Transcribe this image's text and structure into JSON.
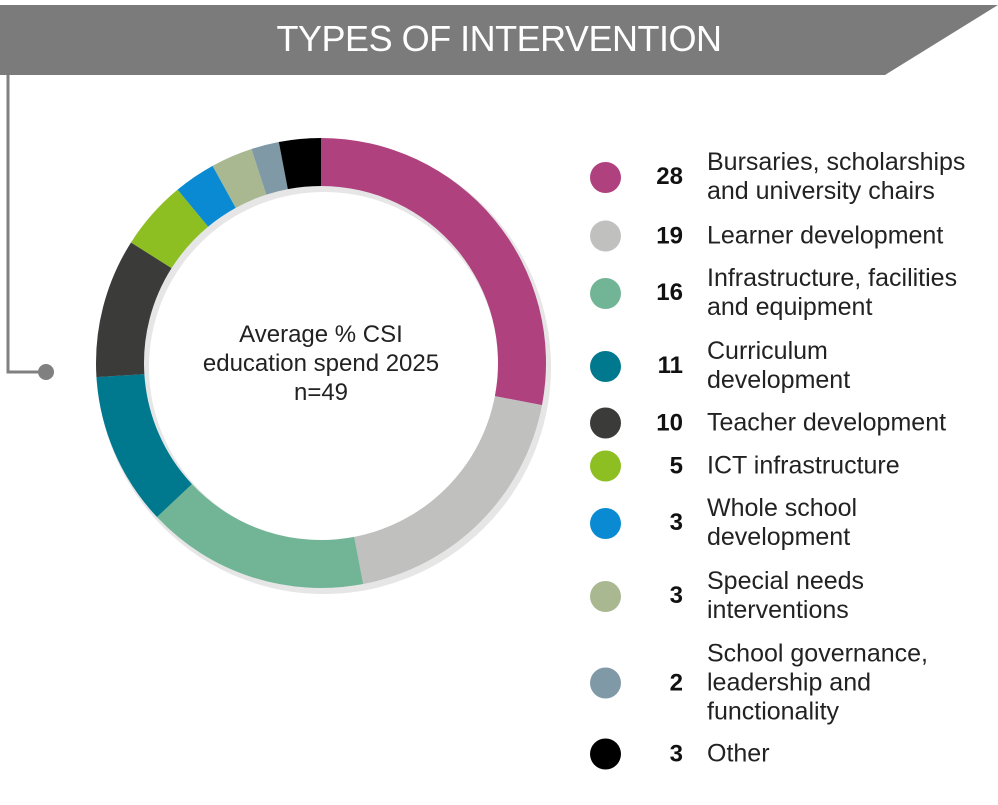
{
  "header": {
    "title": "TYPES OF INTERVENTION"
  },
  "center_label": "Average % CSI education spend 2025 n=49",
  "chart_data": {
    "type": "pie",
    "variant": "donut",
    "title": "Average % CSI education spend 2025 n=49",
    "categories": [
      "Bursaries, scholarships and university chairs",
      "Learner development",
      "Infrastructure, facilities and equipment",
      "Curriculum development",
      "Teacher development",
      "ICT infrastructure",
      "Whole school development",
      "Special needs interventions",
      "School governance, leadership and functionality",
      "Other"
    ],
    "values": [
      28,
      19,
      16,
      11,
      10,
      5,
      3,
      3,
      2,
      3
    ],
    "value_labels": [
      "28",
      "19",
      "16",
      "11",
      "10",
      "5",
      "3",
      "3",
      "2",
      "3"
    ],
    "label_lines": [
      [
        "Bursaries, scholarships",
        "and university chairs"
      ],
      [
        "Learner development"
      ],
      [
        "Infrastructure, facilities",
        "and equipment"
      ],
      [
        "Curriculum",
        "development"
      ],
      [
        "Teacher development"
      ],
      [
        "ICT infrastructure"
      ],
      [
        "Whole school",
        "development"
      ],
      [
        "Special needs",
        "interventions"
      ],
      [
        "School governance,",
        "leadership and",
        "functionality"
      ],
      [
        "Other"
      ]
    ],
    "colors": [
      "#b0417f",
      "#c0c0bf",
      "#72b596",
      "#00798f",
      "#3b3b39",
      "#8dbe22",
      "#0a8ad2",
      "#a9b891",
      "#7f99a7",
      "#000000"
    ],
    "legend_position": "right"
  }
}
